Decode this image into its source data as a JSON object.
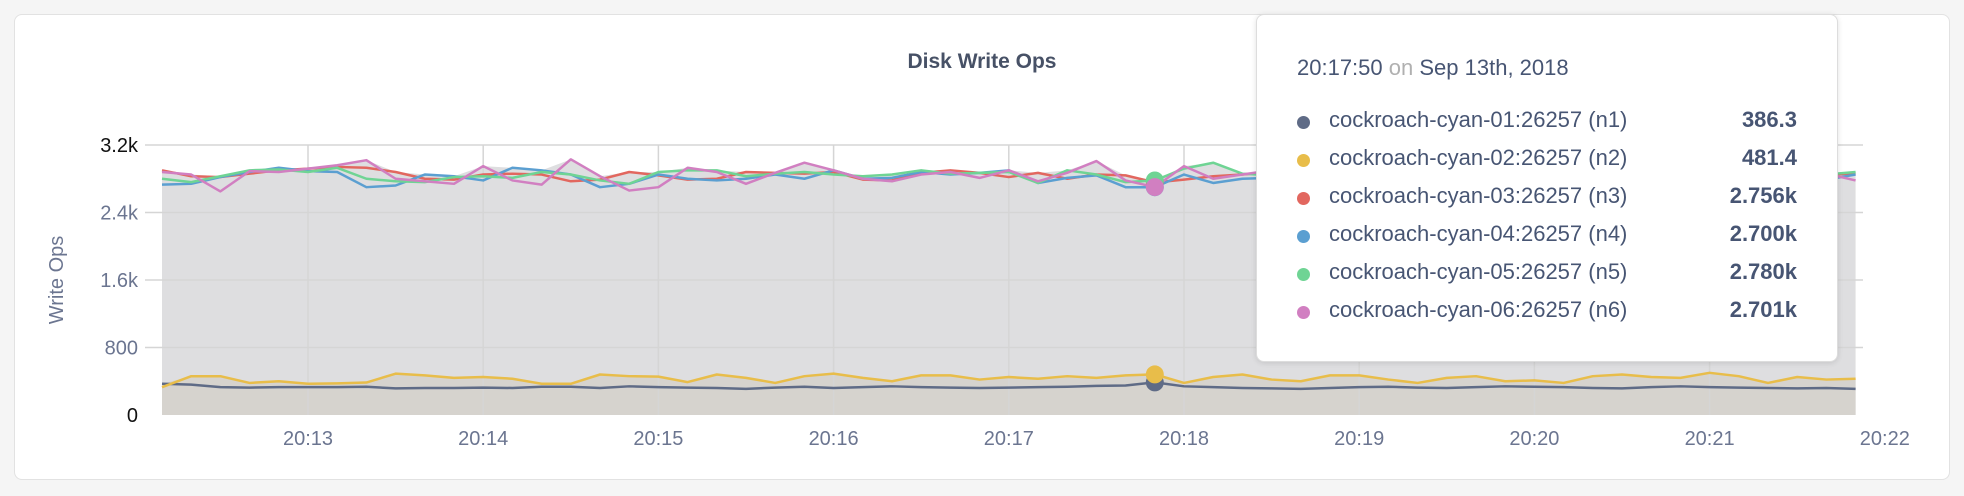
{
  "chart_data": {
    "type": "line",
    "title": "Disk Write Ops",
    "ylabel": "Write Ops",
    "ylim": [
      0,
      3200
    ],
    "yticks": [
      "0",
      "800",
      "1.6k",
      "2.4k",
      "3.2k"
    ],
    "ytick_values": [
      0,
      800,
      1600,
      2400,
      3200
    ],
    "xticks": [
      "20:13",
      "20:14",
      "20:15",
      "20:16",
      "20:17",
      "20:18",
      "20:19",
      "20:20",
      "20:21",
      "20:22"
    ],
    "grid": true,
    "x": [
      "20:12:10",
      "20:12:20",
      "20:12:30",
      "20:12:40",
      "20:12:50",
      "20:13:00",
      "20:13:10",
      "20:13:20",
      "20:13:30",
      "20:13:40",
      "20:13:50",
      "20:14:00",
      "20:14:10",
      "20:14:20",
      "20:14:30",
      "20:14:40",
      "20:14:50",
      "20:15:00",
      "20:15:10",
      "20:15:20",
      "20:15:30",
      "20:15:40",
      "20:15:50",
      "20:16:00",
      "20:16:10",
      "20:16:20",
      "20:16:30",
      "20:16:40",
      "20:16:50",
      "20:17:00",
      "20:17:10",
      "20:17:20",
      "20:17:30",
      "20:17:40",
      "20:17:50",
      "20:18:00",
      "20:18:10",
      "20:18:20",
      "20:18:30",
      "20:18:40",
      "20:18:50",
      "20:19:00",
      "20:19:10",
      "20:19:20",
      "20:19:30",
      "20:19:40",
      "20:19:50",
      "20:20:00",
      "20:20:10",
      "20:20:20",
      "20:20:30",
      "20:20:40",
      "20:20:50",
      "20:21:00",
      "20:21:10",
      "20:21:20",
      "20:21:30",
      "20:21:40",
      "20:21:50"
    ],
    "series": [
      {
        "name": "cockroach-cyan-01:26257 (n1)",
        "color": "#5f6b86",
        "values": [
          370,
          360,
          330,
          325,
          330,
          330,
          330,
          335,
          315,
          320,
          320,
          325,
          320,
          335,
          335,
          320,
          340,
          330,
          325,
          320,
          310,
          325,
          335,
          320,
          330,
          340,
          330,
          325,
          320,
          325,
          330,
          335,
          345,
          350,
          386.3,
          340,
          330,
          320,
          315,
          310,
          320,
          330,
          335,
          325,
          320,
          330,
          340,
          335,
          330,
          320,
          315,
          330,
          340,
          330,
          325,
          320,
          315,
          320,
          310
        ]
      },
      {
        "name": "cockroach-cyan-02:26257 (n2)",
        "color": "#e8bd4a",
        "values": [
          330,
          460,
          460,
          380,
          400,
          370,
          375,
          385,
          490,
          470,
          440,
          450,
          430,
          370,
          370,
          480,
          460,
          455,
          390,
          480,
          440,
          380,
          460,
          490,
          440,
          400,
          470,
          470,
          420,
          450,
          430,
          460,
          440,
          470,
          481.4,
          380,
          450,
          480,
          420,
          400,
          470,
          470,
          420,
          380,
          440,
          460,
          400,
          410,
          380,
          460,
          480,
          450,
          440,
          500,
          460,
          380,
          450,
          420,
          430
        ]
      },
      {
        "name": "cockroach-cyan-03:26257 (n3)",
        "color": "#e2675f",
        "values": [
          2900,
          2830,
          2820,
          2860,
          2900,
          2920,
          2940,
          2930,
          2880,
          2800,
          2790,
          2850,
          2860,
          2850,
          2770,
          2790,
          2880,
          2840,
          2790,
          2800,
          2880,
          2870,
          2860,
          2880,
          2790,
          2780,
          2870,
          2900,
          2870,
          2820,
          2870,
          2800,
          2850,
          2840,
          2756,
          2790,
          2830,
          2850,
          2880,
          2860,
          2820,
          2840,
          2850,
          2870,
          2880,
          2860,
          2900,
          2870,
          2850,
          2840,
          2880,
          2860,
          2870,
          2850,
          2880,
          2900,
          2870,
          2850,
          2860
        ]
      },
      {
        "name": "cockroach-cyan-04:26257 (n4)",
        "color": "#5b9fd1",
        "values": [
          2730,
          2740,
          2820,
          2880,
          2930,
          2890,
          2880,
          2700,
          2720,
          2850,
          2830,
          2780,
          2930,
          2900,
          2850,
          2700,
          2740,
          2850,
          2800,
          2780,
          2800,
          2850,
          2800,
          2900,
          2800,
          2810,
          2880,
          2850,
          2870,
          2900,
          2750,
          2810,
          2840,
          2700,
          2700,
          2850,
          2750,
          2800,
          2810,
          2820,
          2780,
          2800,
          2850,
          2780,
          2790,
          2830,
          2810,
          2850,
          2790,
          2800,
          2860,
          2820,
          2840,
          2800,
          2850,
          2830,
          2810,
          2790,
          2850
        ]
      },
      {
        "name": "cockroach-cyan-05:26257 (n5)",
        "color": "#6fd494",
        "values": [
          2800,
          2760,
          2830,
          2900,
          2910,
          2880,
          2930,
          2800,
          2770,
          2760,
          2820,
          2830,
          2810,
          2880,
          2850,
          2780,
          2740,
          2880,
          2900,
          2900,
          2830,
          2860,
          2880,
          2850,
          2830,
          2850,
          2900,
          2860,
          2870,
          2880,
          2750,
          2900,
          2850,
          2760,
          2780,
          2920,
          2990,
          2860,
          2840,
          2880,
          2860,
          2880,
          2830,
          2850,
          2870,
          2820,
          2860,
          2900,
          2880,
          2870,
          2850,
          2890,
          2860,
          2870,
          2830,
          2860,
          2880,
          2850,
          2880
        ]
      },
      {
        "name": "cockroach-cyan-06:26257 (n6)",
        "color": "#d17fc1",
        "values": [
          2880,
          2850,
          2650,
          2890,
          2880,
          2920,
          2960,
          3020,
          2800,
          2770,
          2740,
          2950,
          2780,
          2730,
          3030,
          2830,
          2660,
          2700,
          2930,
          2880,
          2740,
          2870,
          2990,
          2900,
          2800,
          2770,
          2850,
          2880,
          2810,
          2900,
          2770,
          2870,
          3010,
          2780,
          2701,
          2950,
          2800,
          2850,
          2900,
          2860,
          2810,
          2830,
          2880,
          2900,
          2860,
          2820,
          2890,
          2870,
          2840,
          2880,
          2900,
          2860,
          2830,
          2870,
          2850,
          2820,
          2880,
          2860,
          2780
        ]
      }
    ]
  },
  "tooltip": {
    "time": "20:17:50",
    "on": "on",
    "date": "Sep 13th, 2018",
    "rows": [
      {
        "name": "cockroach-cyan-01:26257 (n1)",
        "value": "386.3"
      },
      {
        "name": "cockroach-cyan-02:26257 (n2)",
        "value": "481.4"
      },
      {
        "name": "cockroach-cyan-03:26257 (n3)",
        "value": "2.756k"
      },
      {
        "name": "cockroach-cyan-04:26257 (n4)",
        "value": "2.700k"
      },
      {
        "name": "cockroach-cyan-05:26257 (n5)",
        "value": "2.780k"
      },
      {
        "name": "cockroach-cyan-06:26257 (n6)",
        "value": "2.701k"
      }
    ],
    "hover_index": 34
  }
}
